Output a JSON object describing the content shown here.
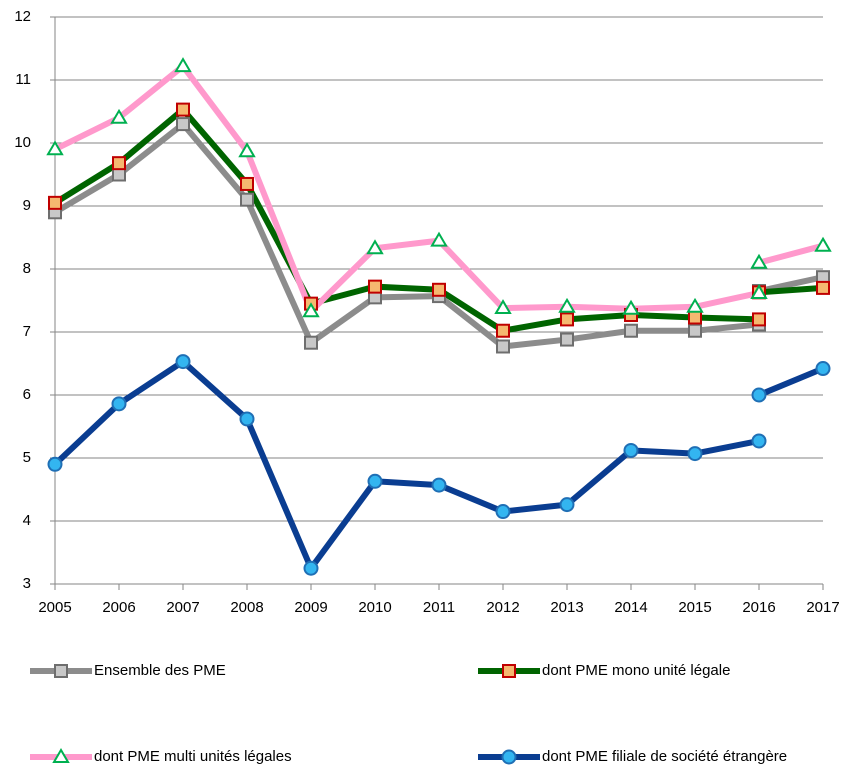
{
  "chart_data": {
    "type": "line",
    "x": [
      2005,
      2006,
      2007,
      2008,
      2009,
      2010,
      2011,
      2012,
      2013,
      2014,
      2015,
      2016,
      null,
      2016,
      2017
    ],
    "series": [
      {
        "name": "Ensemble des PME",
        "color": "#8c8c8c",
        "marker": "square",
        "marker_fill": "#c8c8c8",
        "marker_stroke": "#6e6e6e",
        "values": [
          8.9,
          9.5,
          10.3,
          9.1,
          6.83,
          7.55,
          7.57,
          6.77,
          6.88,
          7.02,
          7.02,
          7.12,
          null,
          7.65,
          7.87
        ]
      },
      {
        "name": "dont PME mono unité légale",
        "color": "#006400",
        "marker": "square",
        "marker_fill": "#f5b870",
        "marker_stroke": "#c00000",
        "values": [
          9.05,
          9.68,
          10.53,
          9.35,
          7.45,
          7.72,
          7.67,
          7.02,
          7.2,
          7.27,
          7.23,
          7.2,
          null,
          7.63,
          7.7
        ]
      },
      {
        "name": "dont PME multi unités légales",
        "color": "#ff99cc",
        "marker": "triangle",
        "marker_fill": "#ffffff",
        "marker_stroke": "#00b050",
        "values": [
          9.9,
          10.4,
          11.22,
          9.87,
          7.33,
          8.33,
          8.45,
          7.38,
          7.4,
          7.37,
          7.4,
          7.62,
          null,
          8.1,
          8.37
        ]
      },
      {
        "name": "dont PME filiale de société étrangère",
        "color": "#0a3d91",
        "marker": "circle",
        "marker_fill": "#33b5f0",
        "marker_stroke": "#1f6fb5",
        "values": [
          4.9,
          5.86,
          6.53,
          5.62,
          3.25,
          4.63,
          4.57,
          4.15,
          4.26,
          5.12,
          5.07,
          5.27,
          null,
          6.0,
          6.42
        ]
      }
    ],
    "xlim": [
      2005,
      2017
    ],
    "xticks": [
      2005,
      2006,
      2007,
      2008,
      2009,
      2010,
      2011,
      2012,
      2013,
      2014,
      2015,
      2016,
      2017
    ],
    "ylim": [
      3,
      12
    ],
    "yticks": [
      3,
      4,
      5,
      6,
      7,
      8,
      9,
      10,
      11,
      12
    ],
    "grid": true,
    "legend": "bottom"
  }
}
